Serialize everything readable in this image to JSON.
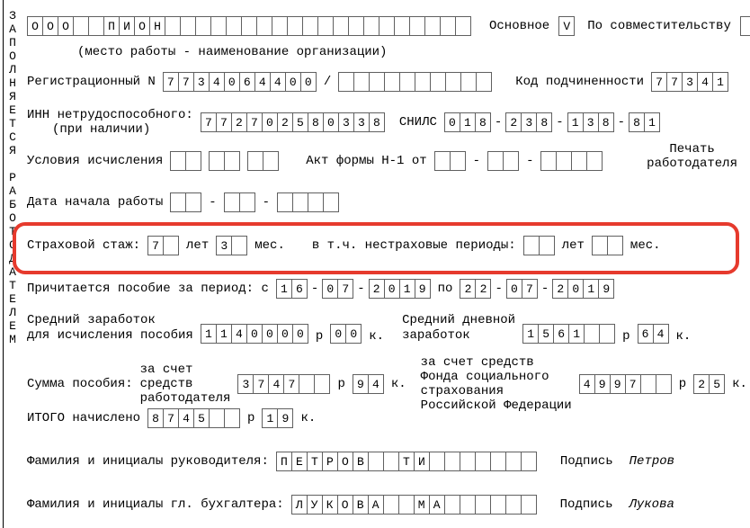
{
  "form": {
    "vertical_text": "ЗАПОЛНЯЕТСЯ РАБОТОДАТЕЛЕМ",
    "org_cells_count": 29,
    "org_name": "ООО  ПИОН",
    "main_label": "Основное",
    "main_check": "V",
    "parttime_label": "По совместительству",
    "parttime_check": "",
    "place_note": "(место работы - наименование организации)",
    "reg_label": "Регистрационный N",
    "reg_num": "7734064400",
    "reg_sub_len": 10,
    "sub_label": "Код подчиненности",
    "sub_code": "77341",
    "inn_label": "ИНН нетрудоспособного:",
    "inn_note": "(при наличии)",
    "inn": "772702580338",
    "snils_label": "СНИЛС",
    "snils": [
      "018",
      "238",
      "138",
      "81"
    ],
    "cond_label": "Условия исчисления",
    "act_label": "Акт формы Н-1 от",
    "stamp_label1": "Печать",
    "stamp_label2": "работодателя",
    "start_label": "Дата начала работы",
    "ins_label": "Страховой стаж:",
    "ins_years": "7",
    "years_word": "лет",
    "ins_months": "3",
    "months_word": "мес.",
    "ins_sub_label": "в т.ч. нестраховые периоды:",
    "ben_label": "Причитается пособие за период: с",
    "ben_from": [
      "16",
      "07",
      "2019"
    ],
    "ben_to_word": "по",
    "ben_to": [
      "22",
      "07",
      "2019"
    ],
    "avg_label1": "Средний заработок",
    "avg_label2": "для исчисления пособия",
    "avg_val": "1140000",
    "avg_rub": "р",
    "avg_kop_val": "00",
    "avg_kop": "к.",
    "avgd_label1": "Средний дневной",
    "avgd_label2": "заработок",
    "avgd_val": "1561",
    "avgd_kop_val": "64",
    "sum_label": "Сумма пособия:",
    "emp_label1": "за счет",
    "emp_label2": "средств",
    "emp_label3": "работодателя",
    "emp_val": "3747",
    "emp_kop": "94",
    "fss_label1": "за счет средств",
    "fss_label2": "Фонда социального",
    "fss_label3": "страхования",
    "fss_label4": "Российской Федерации",
    "fss_val": "4997",
    "fss_kop": "25",
    "tot_label": "ИТОГО   начислено",
    "tot_val": "8745",
    "tot_kop": "19",
    "dir_label": "Фамилия и инициалы руководителя:",
    "dir_name": "ПЕТРОВ  ТИ",
    "dir_sign_label": "Подпись",
    "dir_sign": "Петров",
    "acc_label": "Фамилия и инициалы гл. бухгалтера:",
    "acc_name": "ЛУКОВА  МА",
    "acc_sign_label": "Подпись",
    "acc_sign": "Лукова",
    "highlight_color": "#e63a2d"
  }
}
